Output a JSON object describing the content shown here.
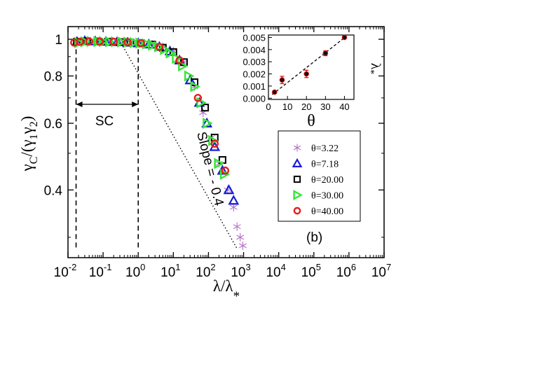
{
  "chart_data": {
    "type": "scatter",
    "panel_label": "(b)",
    "xlabel": {
      "base": "λ/λ",
      "sub": "*"
    },
    "ylabel": {
      "base": "γ",
      "sub1": "C",
      "mid": "/(γ",
      "sub2": "1",
      "mid2": "γ",
      "sub3": "2",
      "end": ")"
    },
    "x_scale": "log",
    "y_scale": "log",
    "xlim": [
      0.01,
      10000000
    ],
    "ylim": [
      0.265,
      1.08
    ],
    "x_ticks": [
      {
        "base": "10",
        "exp": "-2",
        "value": 0.01
      },
      {
        "base": "10",
        "exp": "-1",
        "value": 0.1
      },
      {
        "base": "10",
        "exp": "0",
        "value": 1
      },
      {
        "base": "10",
        "exp": "1",
        "value": 10
      },
      {
        "base": "10",
        "exp": "2",
        "value": 100
      },
      {
        "base": "10",
        "exp": "3",
        "value": 1000
      },
      {
        "base": "10",
        "exp": "4",
        "value": 10000
      },
      {
        "base": "10",
        "exp": "5",
        "value": 100000
      },
      {
        "base": "10",
        "exp": "6",
        "value": 1000000
      },
      {
        "base": "10",
        "exp": "7",
        "value": 10000000
      }
    ],
    "y_ticks": [
      {
        "label": "1",
        "value": 1
      },
      {
        "label": "0.8",
        "value": 0.8
      },
      {
        "label": "0.6",
        "value": 0.6
      },
      {
        "label": "0.4",
        "value": 0.4
      }
    ],
    "annotations": {
      "sc_label": "SC",
      "sc_range": [
        0.017,
        1
      ],
      "slope_label": "Slope = - 0.4",
      "slope_line": {
        "x": [
          0.3,
          650
        ],
        "y": [
          0.99,
          0.28
        ]
      }
    },
    "colors": {
      "theta_3_22": "#b06fc4",
      "theta_7_18": "#1a1adb",
      "theta_20_00": "#000000",
      "theta_30_00": "#33e633",
      "theta_40_00": "#e81c1c"
    },
    "series": [
      {
        "name": "θ=3.22",
        "marker": "asterisk",
        "color_key": "theta_3_22",
        "x": [
          0.02,
          0.04,
          0.08,
          0.15,
          0.3,
          0.6,
          1.2,
          2.5,
          5,
          10,
          20,
          40,
          70,
          120,
          200,
          350,
          520,
          650,
          800,
          950
        ],
        "y": [
          0.985,
          0.988,
          0.985,
          0.985,
          0.985,
          0.982,
          0.978,
          0.97,
          0.955,
          0.93,
          0.87,
          0.75,
          0.64,
          0.55,
          0.47,
          0.4,
          0.36,
          0.32,
          0.3,
          0.285
        ]
      },
      {
        "name": "θ=7.18",
        "marker": "triangle-up",
        "color_key": "theta_7_18",
        "x": [
          0.018,
          0.03,
          0.06,
          0.12,
          0.25,
          0.5,
          1,
          2,
          4,
          8,
          15,
          30,
          55,
          90,
          150,
          250,
          380,
          520
        ],
        "y": [
          0.985,
          0.99,
          0.988,
          0.986,
          0.984,
          0.981,
          0.977,
          0.97,
          0.955,
          0.93,
          0.88,
          0.78,
          0.68,
          0.6,
          0.52,
          0.45,
          0.4,
          0.375
        ]
      },
      {
        "name": "θ=20.00",
        "marker": "square",
        "color_key": "theta_20_00",
        "x": [
          0.018,
          0.035,
          0.07,
          0.14,
          0.3,
          0.6,
          1.2,
          2.5,
          5,
          10,
          20,
          40,
          80,
          150,
          250
        ],
        "y": [
          0.985,
          0.988,
          0.987,
          0.985,
          0.983,
          0.98,
          0.976,
          0.968,
          0.95,
          0.925,
          0.87,
          0.77,
          0.66,
          0.55,
          0.48
        ]
      },
      {
        "name": "θ=30.00",
        "marker": "triangle-right",
        "color_key": "theta_30_00",
        "x": [
          0.02,
          0.03,
          0.045,
          0.07,
          0.1,
          0.15,
          0.22,
          0.33,
          0.5,
          0.75,
          1.1,
          1.7,
          2.5,
          3.8,
          5.5,
          8,
          12,
          18,
          27,
          40,
          60,
          90,
          130,
          190,
          280
        ],
        "y": [
          0.98,
          0.985,
          0.987,
          0.986,
          0.986,
          0.985,
          0.985,
          0.984,
          0.983,
          0.98,
          0.977,
          0.972,
          0.965,
          0.955,
          0.94,
          0.92,
          0.89,
          0.85,
          0.8,
          0.75,
          0.68,
          0.6,
          0.54,
          0.47,
          0.44
        ]
      },
      {
        "name": "θ=40.00",
        "marker": "circle",
        "color_key": "theta_40_00",
        "x": [
          0.015,
          0.022,
          0.04,
          0.08,
          0.2,
          0.5,
          1.2,
          4,
          15,
          50,
          150,
          300
        ],
        "y": [
          0.98,
          0.985,
          0.987,
          0.986,
          0.985,
          0.982,
          0.977,
          0.955,
          0.88,
          0.7,
          0.53,
          0.45
        ]
      }
    ],
    "inset": {
      "type": "scatter",
      "xlabel": "θ",
      "ylabel": {
        "base": "λ",
        "sub": "*"
      },
      "xlim": [
        0,
        45
      ],
      "ylim": [
        -0.0001,
        0.0052
      ],
      "x_ticks": [
        "0",
        "10",
        "20",
        "30",
        "40"
      ],
      "y_ticks": [
        "0.000",
        "0.001",
        "0.002",
        "0.003",
        "0.004",
        "0.005"
      ],
      "points": [
        {
          "x": 3.22,
          "y": 0.0005,
          "err": 0.0001
        },
        {
          "x": 7.18,
          "y": 0.0015,
          "err": 0.0003
        },
        {
          "x": 20,
          "y": 0.002,
          "err": 0.0003
        },
        {
          "x": 30,
          "y": 0.0037,
          "err": 0.0002
        },
        {
          "x": 40,
          "y": 0.005,
          "err": 0.0001
        }
      ],
      "fit_line": {
        "x": [
          2,
          41
        ],
        "y": [
          0.0003,
          0.0051
        ]
      }
    }
  }
}
